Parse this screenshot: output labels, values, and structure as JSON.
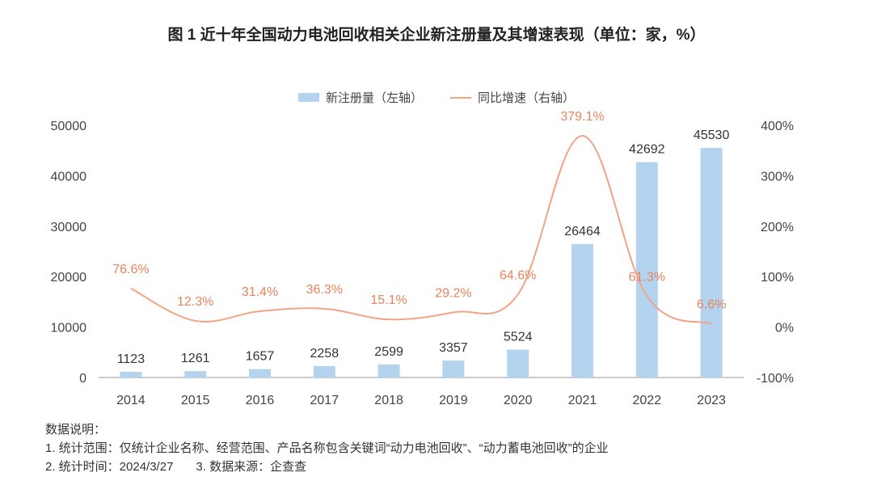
{
  "chart_data": {
    "type": "bar+line",
    "title": "图 1 近十年全国动力电池回收相关企业新注册量及其增速表现（单位：家，%）",
    "categories": [
      "2014",
      "2015",
      "2016",
      "2017",
      "2018",
      "2019",
      "2020",
      "2021",
      "2022",
      "2023"
    ],
    "series": [
      {
        "name": "新注册量（左轴）",
        "type": "bar",
        "axis": "left",
        "color": "#b3d3ee",
        "values": [
          1123,
          1261,
          1657,
          2258,
          2599,
          3357,
          5524,
          26464,
          42692,
          45530
        ],
        "labels": [
          "1123",
          "1261",
          "1657",
          "2258",
          "2599",
          "3357",
          "5524",
          "26464",
          "42692",
          "45530"
        ]
      },
      {
        "name": "同比增速（右轴）",
        "type": "line",
        "axis": "right",
        "color": "#f0a585",
        "values": [
          76.6,
          12.3,
          31.4,
          36.3,
          15.1,
          29.2,
          64.6,
          379.1,
          61.3,
          6.6
        ],
        "labels": [
          "76.6%",
          "12.3%",
          "31.4%",
          "36.3%",
          "15.1%",
          "29.2%",
          "64.6%",
          "379.1%",
          "61.3%",
          "6.6%"
        ]
      }
    ],
    "left_axis": {
      "range": [
        0,
        50000
      ],
      "ticks": [
        "0",
        "10000",
        "20000",
        "30000",
        "40000",
        "50000"
      ]
    },
    "right_axis": {
      "range": [
        -100,
        400
      ],
      "ticks": [
        "-100%",
        "0%",
        "100%",
        "200%",
        "300%",
        "400%"
      ]
    },
    "legend_placement": "top-center",
    "grid": false
  },
  "notes": {
    "heading": "数据说明：",
    "line1": "1. 统计范围：仅统计企业名称、经营范围、产品名称包含关键词“动力电池回收”、“动力蓄电池回收”的企业",
    "line2a": "2. 统计时间：2024/3/27",
    "line2b": "3. 数据来源：企查查"
  },
  "colors": {
    "bar": "#b3d3ee",
    "line": "#f0a585",
    "line_label": "#e8845c",
    "axis": "#999999"
  }
}
